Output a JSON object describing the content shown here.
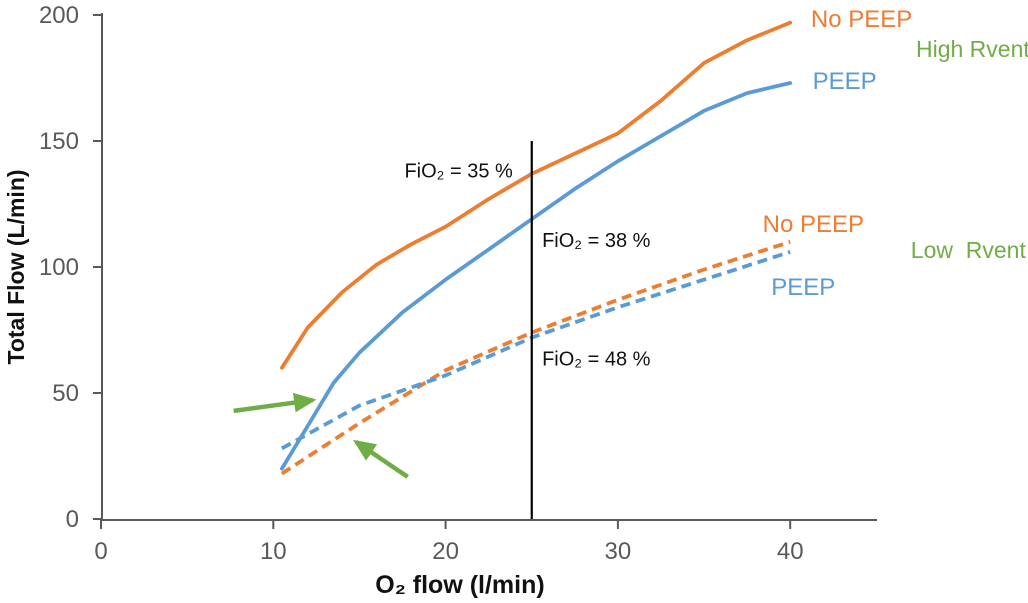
{
  "colors": {
    "orange": "#ED7D31",
    "blue": "#5B9BD5",
    "green": "#70AD47",
    "axis_gray": "#595959",
    "reference_black": "#000000",
    "background": "#FFFFFF"
  },
  "chart_data": {
    "type": "line",
    "title": "",
    "xlabel": "O₂ flow (l/min)",
    "ylabel": "Total Flow (L/min)",
    "xlim": [
      0,
      45
    ],
    "ylim": [
      0,
      200
    ],
    "x_ticks": [
      0,
      10,
      20,
      30,
      40
    ],
    "y_ticks": [
      0,
      50,
      100,
      150,
      200
    ],
    "grid": false,
    "legend_position": "labels-at-line-ends-right",
    "series": [
      {
        "name": "No PEEP",
        "group": "High Rvent",
        "line_style": "solid",
        "color": "#ED7D31",
        "x": [
          10.5,
          12,
          14,
          16,
          18,
          20,
          22.5,
          25,
          27.5,
          30,
          32.5,
          35,
          37.5,
          40
        ],
        "y": [
          60,
          76,
          90,
          101,
          109,
          116,
          127,
          137,
          145,
          153,
          166,
          181,
          190,
          197
        ]
      },
      {
        "name": "PEEP",
        "group": "High Rvent",
        "line_style": "solid",
        "color": "#5B9BD5",
        "x": [
          10.5,
          12,
          13.5,
          15,
          17.5,
          20,
          22.5,
          25,
          27.5,
          30,
          32.5,
          35,
          37.5,
          40
        ],
        "y": [
          20,
          37,
          54,
          66,
          82,
          95,
          107,
          119,
          131,
          142,
          152,
          162,
          169,
          173
        ]
      },
      {
        "name": "No PEEP",
        "group": "Low Rvent",
        "line_style": "dashed",
        "color": "#ED7D31",
        "x": [
          10.5,
          15,
          20,
          25,
          30,
          35,
          40
        ],
        "y": [
          18,
          38,
          59,
          74,
          87,
          99,
          110
        ]
      },
      {
        "name": "PEEP",
        "group": "Low Rvent",
        "line_style": "dashed",
        "color": "#5B9BD5",
        "x": [
          10.5,
          15,
          20,
          25,
          30,
          35,
          40
        ],
        "y": [
          28,
          45,
          57,
          72,
          84,
          95,
          106
        ]
      }
    ],
    "reference_line": {
      "x": 25,
      "y_from": 0,
      "y_to": 150
    },
    "annotations": [
      {
        "text": "FiO₂ = 35 %",
        "x": 23.9,
        "y": 135.5,
        "anchor": "end"
      },
      {
        "text": "FiO₂ = 38 %",
        "x": 25.6,
        "y": 108,
        "anchor": "start"
      },
      {
        "text": "FiO₂ = 48 %",
        "x": 25.6,
        "y": 61,
        "anchor": "start"
      }
    ],
    "series_labels": [
      {
        "text": "No PEEP",
        "x": 41.2,
        "y": 195.2,
        "color": "#ED7D31",
        "kind": "series"
      },
      {
        "text": "High Rvent",
        "x": 47.3,
        "y": 183.3,
        "color": "#70AD47",
        "kind": "group"
      },
      {
        "text": "PEEP",
        "x": 41.3,
        "y": 170.6,
        "color": "#5B9BD5",
        "kind": "series"
      },
      {
        "text": "No PEEP",
        "x": 38.4,
        "y": 113.9,
        "color": "#ED7D31",
        "kind": "series"
      },
      {
        "text": "Low  Rvent",
        "x": 47.0,
        "y": 103.6,
        "color": "#70AD47",
        "kind": "group"
      },
      {
        "text": "PEEP",
        "x": 38.9,
        "y": 88.9,
        "color": "#5B9BD5",
        "kind": "series"
      }
    ],
    "arrows": [
      {
        "from": [
          7.7,
          42.9
        ],
        "to": [
          12.3,
          47.2
        ]
      },
      {
        "from": [
          17.8,
          16.7
        ],
        "to": [
          14.8,
          30.6
        ]
      }
    ]
  }
}
